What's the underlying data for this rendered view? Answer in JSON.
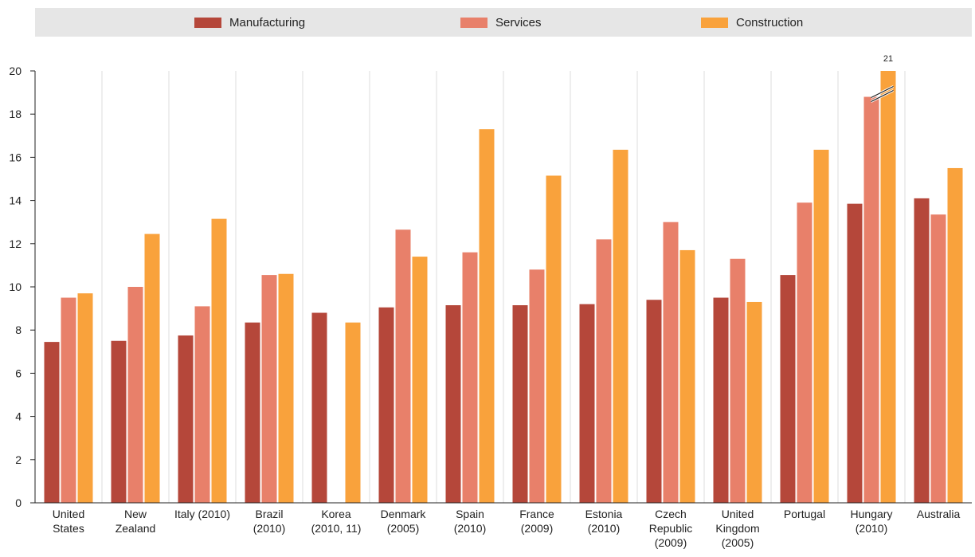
{
  "chart_data": {
    "type": "bar",
    "categories": [
      "United States",
      "New Zealand",
      "Italy (2010)",
      "Brazil (2010)",
      "Korea (2010, 11)",
      "Denmark (2005)",
      "Spain (2010)",
      "France (2009)",
      "Estonia (2010)",
      "Czech Republic (2009)",
      "United Kingdom (2005)",
      "Portugal",
      "Hungary (2010)",
      "Australia"
    ],
    "category_label_lines": [
      [
        "United",
        "States"
      ],
      [
        "New",
        "Zealand"
      ],
      [
        "Italy (2010)"
      ],
      [
        "Brazil",
        "(2010)"
      ],
      [
        "Korea",
        "(2010, 11)"
      ],
      [
        "Denmark",
        "(2005)"
      ],
      [
        "Spain",
        "(2010)"
      ],
      [
        "France",
        "(2009)"
      ],
      [
        "Estonia",
        "(2010)"
      ],
      [
        "Czech",
        "Republic",
        "(2009)"
      ],
      [
        "United",
        "Kingdom",
        "(2005)"
      ],
      [
        "Portugal"
      ],
      [
        "Hungary",
        "(2010)"
      ],
      [
        "Australia"
      ]
    ],
    "series": [
      {
        "name": "Manufacturing",
        "color": "#b5473a",
        "values": [
          7.45,
          7.5,
          7.75,
          8.35,
          8.8,
          9.05,
          9.15,
          9.15,
          9.2,
          9.4,
          9.5,
          10.55,
          13.85,
          14.1
        ]
      },
      {
        "name": "Services",
        "color": "#e8806a",
        "values": [
          9.5,
          10.0,
          9.1,
          10.55,
          null,
          12.65,
          11.6,
          10.8,
          12.2,
          13.0,
          11.3,
          13.9,
          18.8,
          13.35
        ]
      },
      {
        "name": "Construction",
        "color": "#f9a23c",
        "values": [
          9.7,
          12.45,
          13.15,
          10.6,
          8.35,
          11.4,
          17.3,
          15.15,
          16.35,
          11.7,
          9.3,
          16.35,
          21,
          15.5
        ]
      }
    ],
    "ylim": [
      0,
      20
    ],
    "yticks": [
      0,
      2,
      4,
      6,
      8,
      10,
      12,
      14,
      16,
      18,
      20
    ],
    "grid": "vertical-separators",
    "legend_position": "top",
    "annotations": [
      {
        "category": "Hungary (2010)",
        "series": "Construction",
        "text": "21",
        "note": "bar truncated at axis maximum"
      }
    ]
  }
}
